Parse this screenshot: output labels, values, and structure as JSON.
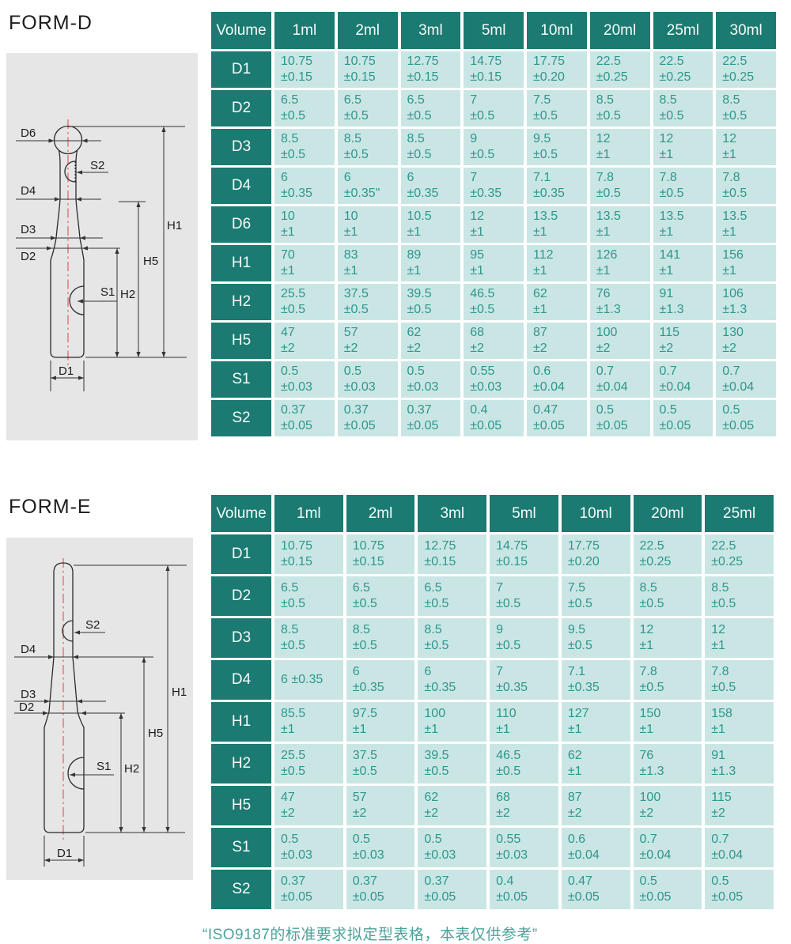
{
  "page": {
    "footnote": "“ISO9187的标准要求拟定型表格，本表仅供参考”"
  },
  "colors": {
    "header_teal": "#1b7a71",
    "cell_background": "#c9e6e4",
    "cell_text_teal": "#2e968c",
    "diagram_panel_gray": "#e6e6e6",
    "centerline_red": "#e25f5f"
  },
  "form_d": {
    "title": "FORM-D",
    "diagram": {
      "d6": "D6",
      "s2": "S2",
      "d4": "D4",
      "d3": "D3",
      "d2": "D2",
      "s1": "S1",
      "h1": "H1",
      "h5": "H5",
      "h2": "H2",
      "d1": "D1"
    },
    "table": {
      "header": [
        "Volume",
        "1ml",
        "2ml",
        "3ml",
        "5ml",
        "10ml",
        "20ml",
        "25ml",
        "30ml"
      ],
      "rows": [
        {
          "label": "D1",
          "cells": [
            [
              "10.75",
              "±0.15"
            ],
            [
              "10.75",
              "±0.15"
            ],
            [
              "12.75",
              "±0.15"
            ],
            [
              "14.75",
              "±0.15"
            ],
            [
              "17.75",
              "±0.20"
            ],
            [
              "22.5",
              "±0.25"
            ],
            [
              "22.5",
              "±0.25"
            ],
            [
              "22.5",
              "±0.25"
            ]
          ]
        },
        {
          "label": "D2",
          "cells": [
            [
              "6.5",
              "±0.5"
            ],
            [
              "6.5",
              "±0.5"
            ],
            [
              "6.5",
              "±0.5"
            ],
            [
              "7",
              "±0.5"
            ],
            [
              "7.5",
              "±0.5"
            ],
            [
              "8.5",
              "±0.5"
            ],
            [
              "8.5",
              "±0.5"
            ],
            [
              "8.5",
              "±0.5"
            ]
          ]
        },
        {
          "label": "D3",
          "cells": [
            [
              "8.5",
              "±0.5"
            ],
            [
              "8.5",
              "±0.5"
            ],
            [
              "8.5",
              "±0.5"
            ],
            [
              "9",
              "±0.5"
            ],
            [
              "9.5",
              "±0.5"
            ],
            [
              "12",
              "±1"
            ],
            [
              "12",
              "±1"
            ],
            [
              "12",
              "±1"
            ]
          ]
        },
        {
          "label": "D4",
          "cells": [
            [
              "6",
              "±0.35"
            ],
            [
              "6",
              "±0.35\""
            ],
            [
              "6",
              "±0.35"
            ],
            [
              "7",
              "±0.35"
            ],
            [
              "7.1",
              "±0.35"
            ],
            [
              "7.8",
              "±0.5"
            ],
            [
              "7.8",
              "±0.5"
            ],
            [
              "7.8",
              "±0.5"
            ]
          ]
        },
        {
          "label": "D6",
          "cells": [
            [
              "10",
              "±1"
            ],
            [
              "10",
              "±1"
            ],
            [
              "10.5",
              "±1"
            ],
            [
              "12",
              "±1"
            ],
            [
              "13.5",
              "±1"
            ],
            [
              "13.5",
              "±1"
            ],
            [
              "13.5",
              "±1"
            ],
            [
              "13.5",
              "±1"
            ]
          ]
        },
        {
          "label": "H1",
          "cells": [
            [
              "70",
              "±1"
            ],
            [
              "83",
              "±1"
            ],
            [
              "89",
              "±1"
            ],
            [
              "95",
              "±1"
            ],
            [
              "112",
              "±1"
            ],
            [
              "126",
              "±1"
            ],
            [
              "141",
              "±1"
            ],
            [
              "156",
              "±1"
            ]
          ]
        },
        {
          "label": "H2",
          "cells": [
            [
              "25.5",
              "±0.5"
            ],
            [
              "37.5",
              "±0.5"
            ],
            [
              "39.5",
              "±0.5"
            ],
            [
              "46.5",
              "±0.5"
            ],
            [
              "62",
              "±1"
            ],
            [
              "76",
              "±1.3"
            ],
            [
              "91",
              "±1.3"
            ],
            [
              "106",
              "±1.3"
            ]
          ]
        },
        {
          "label": "H5",
          "cells": [
            [
              "47",
              "±2"
            ],
            [
              "57",
              "±2"
            ],
            [
              "62",
              "±2"
            ],
            [
              "68",
              "±2"
            ],
            [
              "87",
              "±2"
            ],
            [
              "100",
              "±2"
            ],
            [
              "115",
              "±2"
            ],
            [
              "130",
              "±2"
            ]
          ]
        },
        {
          "label": "S1",
          "cells": [
            [
              "0.5",
              "±0.03"
            ],
            [
              "0.5",
              "±0.03"
            ],
            [
              "0.5",
              "±0.03"
            ],
            [
              "0.55",
              "±0.03"
            ],
            [
              "0.6",
              "±0.04"
            ],
            [
              "0.7",
              "±0.04"
            ],
            [
              "0.7",
              "±0.04"
            ],
            [
              "0.7",
              "±0.04"
            ]
          ]
        },
        {
          "label": "S2",
          "cells": [
            [
              "0.37",
              "±0.05"
            ],
            [
              "0.37",
              "±0.05"
            ],
            [
              "0.37",
              "±0.05"
            ],
            [
              "0.4",
              "±0.05"
            ],
            [
              "0.47",
              "±0.05"
            ],
            [
              "0.5",
              "±0.05"
            ],
            [
              "0.5",
              "±0.05"
            ],
            [
              "0.5",
              "±0.05"
            ]
          ]
        }
      ]
    }
  },
  "form_e": {
    "title": "FORM-E",
    "diagram": {
      "s2": "S2",
      "d4": "D4",
      "d3": "D3",
      "d2": "D2",
      "s1": "S1",
      "h1": "H1",
      "h5": "H5",
      "h2": "H2",
      "d1": "D1"
    },
    "table": {
      "header": [
        "Volume",
        "1ml",
        "2ml",
        "3ml",
        "5ml",
        "10ml",
        "20ml",
        "25ml"
      ],
      "rows": [
        {
          "label": "D1",
          "cells": [
            [
              "10.75",
              "±0.15"
            ],
            [
              "10.75",
              "±0.15"
            ],
            [
              "12.75",
              "±0.15"
            ],
            [
              "14.75",
              "±0.15"
            ],
            [
              "17.75",
              "±0.20"
            ],
            [
              "22.5",
              "±0.25"
            ],
            [
              "22.5",
              "±0.25"
            ]
          ]
        },
        {
          "label": "D2",
          "cells": [
            [
              "6.5",
              "±0.5"
            ],
            [
              "6.5",
              "±0.5"
            ],
            [
              "6.5",
              "±0.5"
            ],
            [
              "7",
              "±0.5"
            ],
            [
              "7.5",
              "±0.5"
            ],
            [
              "8.5",
              "±0.5"
            ],
            [
              "8.5",
              "±0.5"
            ]
          ]
        },
        {
          "label": "D3",
          "cells": [
            [
              "8.5",
              "±0.5"
            ],
            [
              "8.5",
              "±0.5"
            ],
            [
              "8.5",
              "±0.5"
            ],
            [
              "9",
              "±0.5"
            ],
            [
              "9.5",
              "±0.5"
            ],
            [
              "12",
              "±1"
            ],
            [
              "12",
              "±1"
            ]
          ]
        },
        {
          "label": "D4",
          "cells": [
            [
              "6  ±0.35",
              ""
            ],
            [
              "6",
              "±0.35"
            ],
            [
              "6",
              "±0.35"
            ],
            [
              "7",
              "±0.35"
            ],
            [
              "7.1",
              "±0.35"
            ],
            [
              "7.8",
              "±0.5"
            ],
            [
              "7.8",
              "±0.5"
            ]
          ]
        },
        {
          "label": "H1",
          "cells": [
            [
              "85.5",
              "±1"
            ],
            [
              "97.5",
              "±1"
            ],
            [
              "100",
              "±1"
            ],
            [
              "110",
              "±1"
            ],
            [
              "127",
              "±1"
            ],
            [
              "150",
              "±1"
            ],
            [
              "158",
              "±1"
            ]
          ]
        },
        {
          "label": "H2",
          "cells": [
            [
              "25.5",
              "±0.5"
            ],
            [
              "37.5",
              "±0.5"
            ],
            [
              "39.5",
              "±0.5"
            ],
            [
              "46.5",
              "±0.5"
            ],
            [
              "62",
              "±1"
            ],
            [
              "76",
              "±1.3"
            ],
            [
              "91",
              "±1.3"
            ]
          ]
        },
        {
          "label": "H5",
          "cells": [
            [
              "47",
              "±2"
            ],
            [
              "57",
              "±2"
            ],
            [
              "62",
              "±2"
            ],
            [
              "68",
              "±2"
            ],
            [
              "87",
              "±2"
            ],
            [
              "100",
              "±2"
            ],
            [
              "115",
              "±2"
            ]
          ]
        },
        {
          "label": "S1",
          "cells": [
            [
              "0.5",
              "±0.03"
            ],
            [
              "0.5",
              "±0.03"
            ],
            [
              "0.5",
              "±0.03"
            ],
            [
              "0.55",
              "±0.03"
            ],
            [
              "0.6",
              "±0.04"
            ],
            [
              "0.7",
              "±0.04"
            ],
            [
              "0.7",
              "±0.04"
            ]
          ]
        },
        {
          "label": "S2",
          "cells": [
            [
              "0.37",
              "±0.05"
            ],
            [
              "0.37",
              "±0.05"
            ],
            [
              "0.37",
              "±0.05"
            ],
            [
              "0.4",
              "±0.05"
            ],
            [
              "0.47",
              "±0.05"
            ],
            [
              "0.5",
              "±0.05"
            ],
            [
              "0.5",
              "±0.05"
            ]
          ]
        }
      ]
    }
  }
}
